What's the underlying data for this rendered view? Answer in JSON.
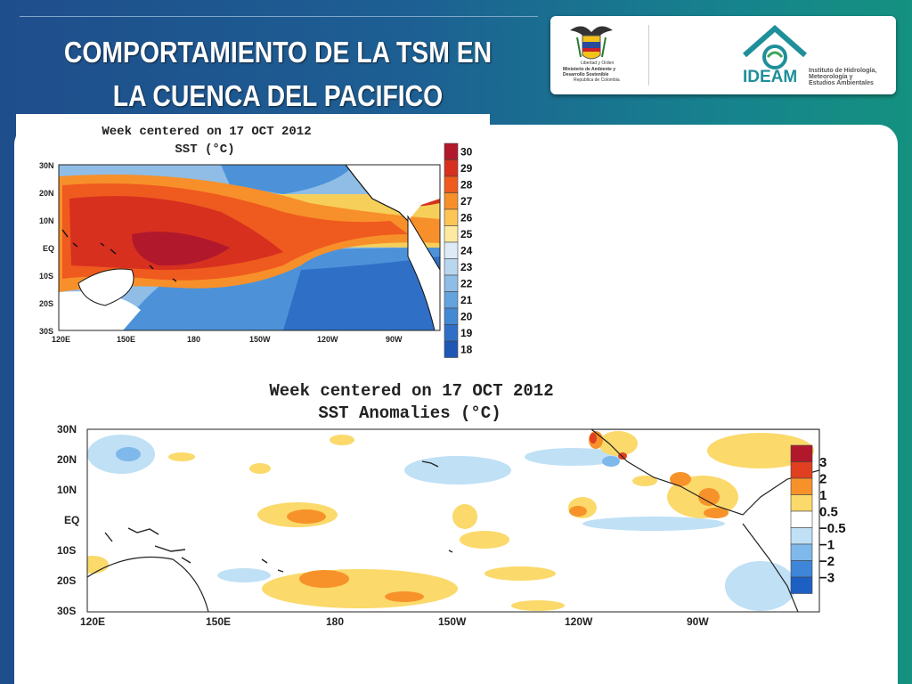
{
  "slide": {
    "title_line1": "COMPORTAMIENTO DE LA TSM EN",
    "title_line2": "LA CUENCA DEL PACIFICO"
  },
  "logos": {
    "ministerio_text": [
      "Libertad y Orden",
      "Ministerio de Ambiente y",
      "Desarrollo Sostenible",
      "Republica de Colombia"
    ],
    "ideam_name": "IDEAM",
    "ideam_text": [
      "Instituto de Hidrología,",
      "Meteorología y",
      "Estudios Ambientales"
    ]
  },
  "sst_map": {
    "title": "Week centered on 17 OCT 2012",
    "subtitle": "SST (°C)",
    "lat_labels": [
      "30N",
      "20N",
      "10N",
      "EQ",
      "10S",
      "20S",
      "30S"
    ],
    "lon_labels": [
      "120E",
      "150E",
      "180",
      "150W",
      "120W",
      "90W"
    ],
    "colorbar": {
      "labels": [
        "30",
        "29",
        "28",
        "27",
        "26",
        "25",
        "24",
        "23",
        "22",
        "21",
        "20",
        "19",
        "18"
      ],
      "colors": [
        "#b2182b",
        "#d7301f",
        "#ef5a1e",
        "#f7902a",
        "#fcc556",
        "#fdeaa0",
        "#deebf7",
        "#b9d6ef",
        "#8fbde6",
        "#64a3dd",
        "#4489d4",
        "#2f6fc6",
        "#1f57b4"
      ]
    }
  },
  "anomaly_map": {
    "title": "Week centered on 17 OCT 2012",
    "subtitle": "SST Anomalies (°C)",
    "lat_labels": [
      "30N",
      "20N",
      "10N",
      "EQ",
      "10S",
      "20S",
      "30S"
    ],
    "lon_labels": [
      "120E",
      "150E",
      "180",
      "150W",
      "120W",
      "90W"
    ],
    "colorbar": {
      "labels": [
        "3",
        "2",
        "1",
        "0.5",
        "−0.5",
        "−1",
        "−2",
        "−3"
      ],
      "colors": [
        "#b2182b",
        "#e0401f",
        "#f7922a",
        "#fbd96a",
        "#ffffff",
        "#bfe0f5",
        "#7fb8ea",
        "#3f86d9",
        "#1e5fc4"
      ]
    }
  }
}
